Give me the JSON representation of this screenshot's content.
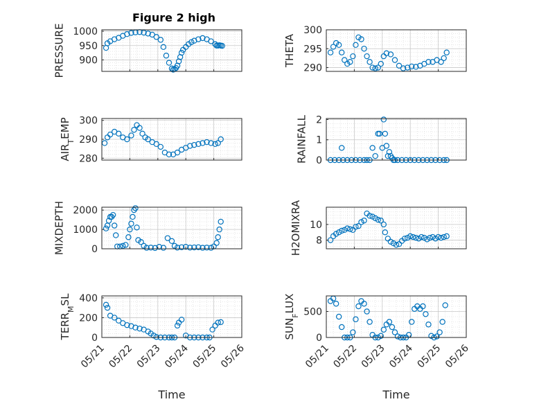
{
  "title": "Figure 2 high",
  "colors": {
    "marker": "#0072BD",
    "axis": "#262626",
    "grid": "#c8c8c8"
  },
  "chart_data": [
    {
      "type": "scatter",
      "title": "Figure 2 high",
      "ylabel": "PRESSURE",
      "xlabel": "",
      "xlim": [
        "05/21",
        "05/26"
      ],
      "ylim": [
        860,
        1005
      ],
      "yticks": [
        900,
        950,
        1000
      ],
      "xticks": [
        "05/21",
        "05/22",
        "05/23",
        "05/24",
        "05/25",
        "05/26"
      ],
      "grid": true,
      "minor_grid": true,
      "series": [
        {
          "x_days": [
            0.15,
            0.2,
            0.3,
            0.45,
            0.6,
            0.75,
            0.9,
            1.05,
            1.2,
            1.35,
            1.5,
            1.65,
            1.8,
            1.95,
            2.1,
            2.2,
            2.3,
            2.4,
            2.5,
            2.55,
            2.6,
            2.65,
            2.7,
            2.75,
            2.8,
            2.85,
            2.9,
            3.0,
            3.1,
            3.2,
            3.3,
            3.45,
            3.6,
            3.75,
            3.9,
            4.05,
            4.1,
            4.15,
            4.2,
            4.25,
            4.3
          ],
          "y": [
            942,
            958,
            965,
            972,
            977,
            984,
            990,
            994,
            996,
            997,
            995,
            992,
            988,
            980,
            970,
            945,
            915,
            890,
            870,
            866,
            868,
            872,
            880,
            895,
            910,
            925,
            935,
            945,
            955,
            962,
            967,
            972,
            976,
            972,
            965,
            955,
            950,
            950,
            951,
            950,
            949
          ]
        }
      ]
    },
    {
      "type": "scatter",
      "title": "",
      "ylabel": "THETA",
      "xlabel": "",
      "xlim": [
        "05/21",
        "05/26"
      ],
      "ylim": [
        289,
        300
      ],
      "yticks": [
        290,
        295,
        300
      ],
      "xticks": [
        "05/21",
        "05/22",
        "05/23",
        "05/24",
        "05/25",
        "05/26"
      ],
      "grid": true,
      "minor_grid": true,
      "series": [
        {
          "x_days": [
            0.15,
            0.25,
            0.35,
            0.45,
            0.55,
            0.65,
            0.75,
            0.85,
            0.95,
            1.05,
            1.15,
            1.25,
            1.35,
            1.45,
            1.55,
            1.65,
            1.75,
            1.85,
            1.95,
            2.05,
            2.15,
            2.3,
            2.45,
            2.6,
            2.75,
            2.9,
            3.05,
            3.2,
            3.35,
            3.5,
            3.65,
            3.8,
            3.95,
            4.1,
            4.2,
            4.3
          ],
          "y": [
            294,
            295.5,
            296.5,
            296,
            294,
            292,
            291,
            291.5,
            293,
            296,
            298,
            297.5,
            295,
            293,
            291.5,
            290,
            289.8,
            290,
            291,
            293,
            293.8,
            293.5,
            292,
            290.5,
            289.8,
            290,
            290.3,
            290.2,
            290.5,
            291,
            291.5,
            291.5,
            292,
            291.5,
            292.5,
            294
          ]
        }
      ]
    },
    {
      "type": "scatter",
      "title": "",
      "ylabel": "AIR_TEMP",
      "xlabel": "",
      "xlim": [
        "05/21",
        "05/26"
      ],
      "ylim": [
        279,
        301
      ],
      "yticks": [
        280,
        290,
        300
      ],
      "xticks": [
        "05/21",
        "05/22",
        "05/23",
        "05/24",
        "05/25",
        "05/26"
      ],
      "grid": true,
      "minor_grid": true,
      "series": [
        {
          "x_days": [
            0.1,
            0.2,
            0.3,
            0.45,
            0.6,
            0.75,
            0.9,
            1.05,
            1.15,
            1.25,
            1.35,
            1.45,
            1.55,
            1.65,
            1.8,
            1.95,
            2.1,
            2.25,
            2.4,
            2.55,
            2.7,
            2.85,
            3.0,
            3.15,
            3.3,
            3.45,
            3.6,
            3.75,
            3.9,
            4.05,
            4.15,
            4.25
          ],
          "y": [
            288,
            291,
            292.5,
            294,
            293,
            291,
            290,
            292,
            295,
            297.5,
            296,
            293,
            291,
            290,
            288.5,
            287.5,
            286,
            283,
            282,
            282,
            283,
            284.5,
            285.5,
            286.5,
            287,
            287.5,
            288,
            288.5,
            288,
            287.5,
            288,
            290
          ]
        }
      ]
    },
    {
      "type": "scatter",
      "title": "",
      "ylabel": "RAINFALL",
      "xlabel": "",
      "xlim": [
        "05/21",
        "05/26"
      ],
      "ylim": [
        0,
        2.05
      ],
      "yticks": [
        0,
        1,
        2
      ],
      "xticks": [
        "05/21",
        "05/22",
        "05/23",
        "05/24",
        "05/25",
        "05/26"
      ],
      "grid": true,
      "minor_grid": true,
      "series": [
        {
          "x_days": [
            0.15,
            0.3,
            0.45,
            0.55,
            0.6,
            0.75,
            0.9,
            1.05,
            1.2,
            1.35,
            1.45,
            1.55,
            1.65,
            1.75,
            1.85,
            1.9,
            2.0,
            2.05,
            2.1,
            2.15,
            2.2,
            2.25,
            2.3,
            2.35,
            2.4,
            2.45,
            2.55,
            2.7,
            2.85,
            3.0,
            3.15,
            3.3,
            3.45,
            3.6,
            3.75,
            3.9,
            4.05,
            4.2,
            4.3
          ],
          "y": [
            0,
            0,
            0,
            0.6,
            0,
            0,
            0,
            0,
            0,
            0,
            0,
            0,
            0.6,
            0.2,
            1.3,
            1.3,
            0.6,
            2.0,
            1.3,
            0.7,
            0.2,
            0.4,
            0.2,
            0.1,
            0,
            0,
            0,
            0,
            0,
            0,
            0,
            0,
            0,
            0,
            0,
            0,
            0,
            0,
            0
          ]
        }
      ]
    },
    {
      "type": "scatter",
      "title": "",
      "ylabel": "MIXDEPTH",
      "xlabel": "",
      "xlim": [
        "05/21",
        "05/26"
      ],
      "ylim": [
        0,
        2150
      ],
      "yticks": [
        0,
        1000,
        2000
      ],
      "xticks": [
        "05/21",
        "05/22",
        "05/23",
        "05/24",
        "05/25",
        "05/26"
      ],
      "grid": true,
      "minor_grid": true,
      "series": [
        {
          "x_days": [
            0.15,
            0.2,
            0.25,
            0.3,
            0.35,
            0.4,
            0.45,
            0.5,
            0.55,
            0.65,
            0.75,
            0.85,
            0.95,
            1.0,
            1.05,
            1.1,
            1.15,
            1.2,
            1.25,
            1.3,
            1.4,
            1.5,
            1.6,
            1.75,
            1.9,
            2.05,
            2.2,
            2.35,
            2.5,
            2.6,
            2.7,
            2.85,
            3.0,
            3.15,
            3.3,
            3.45,
            3.6,
            3.75,
            3.9,
            4.0,
            4.1,
            4.15,
            4.2,
            4.25
          ],
          "y": [
            1050,
            1200,
            1450,
            1650,
            1650,
            1750,
            1200,
            700,
            120,
            120,
            150,
            200,
            600,
            1000,
            1300,
            1650,
            2000,
            2100,
            1100,
            450,
            350,
            150,
            50,
            60,
            40,
            100,
            50,
            550,
            400,
            150,
            60,
            80,
            100,
            60,
            70,
            80,
            50,
            60,
            50,
            120,
            300,
            600,
            1000,
            1400
          ]
        }
      ]
    },
    {
      "type": "scatter",
      "title": "",
      "ylabel": "H2OMIXRA",
      "xlabel": "",
      "xlim": [
        "05/21",
        "05/26"
      ],
      "ylim": [
        6.9,
        12.2
      ],
      "yticks": [
        8,
        10
      ],
      "xticks": [
        "05/21",
        "05/22",
        "05/23",
        "05/24",
        "05/25",
        "05/26"
      ],
      "grid": true,
      "minor_grid": true,
      "series": [
        {
          "x_days": [
            0.15,
            0.25,
            0.35,
            0.45,
            0.55,
            0.65,
            0.75,
            0.85,
            0.95,
            1.05,
            1.15,
            1.25,
            1.35,
            1.45,
            1.55,
            1.65,
            1.75,
            1.85,
            1.95,
            2.05,
            2.1,
            2.2,
            2.3,
            2.4,
            2.5,
            2.6,
            2.7,
            2.8,
            2.9,
            3.0,
            3.1,
            3.2,
            3.3,
            3.4,
            3.5,
            3.6,
            3.7,
            3.8,
            3.9,
            4.0,
            4.1,
            4.2,
            4.3
          ],
          "y": [
            8,
            8.5,
            8.8,
            9,
            9.2,
            9.3,
            9.5,
            9.4,
            9.3,
            9.7,
            9.8,
            10.3,
            10.5,
            11.4,
            11.1,
            11.0,
            10.8,
            10.6,
            10.5,
            10.0,
            9.0,
            8.2,
            7.8,
            7.6,
            7.4,
            7.5,
            7.9,
            8.2,
            8.3,
            8.5,
            8.4,
            8.3,
            8.2,
            8.4,
            8.3,
            8.1,
            8.3,
            8.4,
            8.2,
            8.4,
            8.3,
            8.4,
            8.5
          ]
        }
      ]
    },
    {
      "type": "scatter",
      "title": "",
      "ylabel": "TERR_MSL",
      "xlabel": "Time",
      "xlim": [
        "05/21",
        "05/26"
      ],
      "ylim": [
        0,
        420
      ],
      "yticks": [
        0,
        200,
        400
      ],
      "xticks": [
        "05/21",
        "05/22",
        "05/23",
        "05/24",
        "05/25",
        "05/26"
      ],
      "grid": true,
      "minor_grid": true,
      "series": [
        {
          "x_days": [
            0.15,
            0.2,
            0.3,
            0.45,
            0.6,
            0.75,
            0.9,
            1.05,
            1.2,
            1.35,
            1.5,
            1.65,
            1.75,
            1.85,
            1.95,
            2.1,
            2.25,
            2.4,
            2.5,
            2.6,
            2.7,
            2.75,
            2.85,
            3.0,
            3.15,
            3.3,
            3.45,
            3.6,
            3.75,
            3.85,
            3.95,
            4.05,
            4.15,
            4.25
          ],
          "y": [
            330,
            300,
            220,
            200,
            170,
            145,
            125,
            115,
            100,
            90,
            80,
            60,
            40,
            20,
            5,
            0,
            0,
            0,
            0,
            0,
            120,
            150,
            180,
            20,
            0,
            0,
            0,
            0,
            0,
            0,
            80,
            120,
            150,
            155
          ]
        }
      ]
    },
    {
      "type": "scatter",
      "title": "",
      "ylabel": "SUN_FLUX",
      "xlabel": "Time",
      "xlim": [
        "05/21",
        "05/26"
      ],
      "ylim": [
        0,
        800
      ],
      "yticks": [
        0,
        500
      ],
      "xticks": [
        "05/21",
        "05/22",
        "05/23",
        "05/24",
        "05/25",
        "05/26"
      ],
      "grid": true,
      "minor_grid": true,
      "series": [
        {
          "x_days": [
            0.15,
            0.25,
            0.35,
            0.45,
            0.55,
            0.65,
            0.75,
            0.85,
            0.95,
            1.05,
            1.15,
            1.25,
            1.35,
            1.45,
            1.55,
            1.65,
            1.75,
            1.85,
            1.95,
            2.05,
            2.15,
            2.25,
            2.35,
            2.45,
            2.55,
            2.65,
            2.75,
            2.85,
            2.95,
            3.05,
            3.15,
            3.25,
            3.35,
            3.45,
            3.55,
            3.65,
            3.75,
            3.85,
            3.95,
            4.05,
            4.15,
            4.25
          ],
          "y": [
            700,
            750,
            650,
            400,
            200,
            0,
            0,
            0,
            100,
            350,
            600,
            700,
            650,
            500,
            300,
            50,
            0,
            0,
            30,
            150,
            250,
            300,
            200,
            100,
            20,
            0,
            0,
            0,
            50,
            300,
            550,
            600,
            550,
            600,
            450,
            250,
            30,
            0,
            20,
            100,
            300,
            620
          ]
        }
      ]
    }
  ]
}
